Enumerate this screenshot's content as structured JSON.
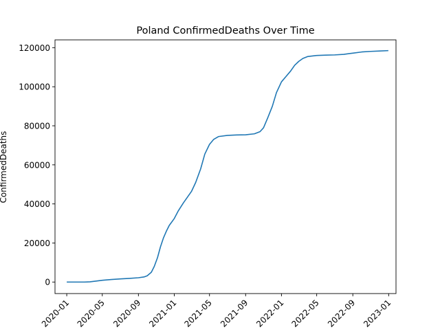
{
  "chart_data": {
    "type": "line",
    "title": "Poland  ConfirmedDeaths Over Time",
    "xlabel": "",
    "ylabel": "ConfirmedDeaths",
    "x_ticks": [
      "2020-01",
      "2020-05",
      "2020-09",
      "2021-01",
      "2021-05",
      "2021-09",
      "2022-01",
      "2022-05",
      "2022-09",
      "2023-01"
    ],
    "x_tick_dates": [
      "2020-01-01",
      "2020-05-01",
      "2020-09-01",
      "2021-01-01",
      "2021-05-01",
      "2021-09-01",
      "2022-01-01",
      "2022-05-01",
      "2022-09-01",
      "2023-01-01"
    ],
    "y_ticks": [
      0,
      20000,
      40000,
      60000,
      80000,
      100000,
      120000
    ],
    "y_tick_labels": [
      "0",
      "20000",
      "40000",
      "60000",
      "80000",
      "100000",
      "120000"
    ],
    "xlim": [
      "2019-11-22",
      "2023-01-26"
    ],
    "ylim": [
      -5900,
      124000
    ],
    "grid": false,
    "series": [
      {
        "color": "#1f77b4",
        "points": [
          [
            "2020-01-01",
            0
          ],
          [
            "2020-03-01",
            0
          ],
          [
            "2020-03-20",
            100
          ],
          [
            "2020-04-15",
            600
          ],
          [
            "2020-05-01",
            900
          ],
          [
            "2020-06-01",
            1300
          ],
          [
            "2020-07-01",
            1600
          ],
          [
            "2020-08-01",
            1850
          ],
          [
            "2020-09-01",
            2200
          ],
          [
            "2020-09-20",
            2600
          ],
          [
            "2020-10-01",
            3200
          ],
          [
            "2020-10-15",
            5000
          ],
          [
            "2020-10-25",
            8000
          ],
          [
            "2020-11-05",
            12500
          ],
          [
            "2020-11-15",
            18000
          ],
          [
            "2020-11-25",
            22500
          ],
          [
            "2020-12-05",
            26000
          ],
          [
            "2020-12-15",
            29000
          ],
          [
            "2021-01-01",
            32500
          ],
          [
            "2021-01-15",
            36500
          ],
          [
            "2021-02-01",
            40500
          ],
          [
            "2021-02-15",
            43500
          ],
          [
            "2021-03-01",
            46500
          ],
          [
            "2021-03-15",
            51000
          ],
          [
            "2021-04-01",
            58000
          ],
          [
            "2021-04-15",
            65500
          ],
          [
            "2021-05-01",
            70500
          ],
          [
            "2021-05-15",
            73000
          ],
          [
            "2021-06-01",
            74500
          ],
          [
            "2021-07-01",
            75100
          ],
          [
            "2021-08-01",
            75300
          ],
          [
            "2021-09-01",
            75400
          ],
          [
            "2021-10-01",
            75900
          ],
          [
            "2021-10-20",
            77000
          ],
          [
            "2021-11-01",
            79000
          ],
          [
            "2021-11-15",
            84000
          ],
          [
            "2021-12-01",
            90000
          ],
          [
            "2021-12-15",
            97000
          ],
          [
            "2022-01-01",
            102500
          ],
          [
            "2022-01-15",
            105000
          ],
          [
            "2022-02-01",
            108000
          ],
          [
            "2022-02-15",
            111000
          ],
          [
            "2022-03-01",
            113000
          ],
          [
            "2022-03-15",
            114500
          ],
          [
            "2022-04-01",
            115500
          ],
          [
            "2022-05-01",
            116000
          ],
          [
            "2022-06-01",
            116200
          ],
          [
            "2022-07-01",
            116300
          ],
          [
            "2022-08-01",
            116600
          ],
          [
            "2022-09-01",
            117200
          ],
          [
            "2022-10-01",
            117800
          ],
          [
            "2022-11-01",
            118100
          ],
          [
            "2022-12-01",
            118300
          ],
          [
            "2022-12-31",
            118500
          ]
        ]
      }
    ]
  }
}
